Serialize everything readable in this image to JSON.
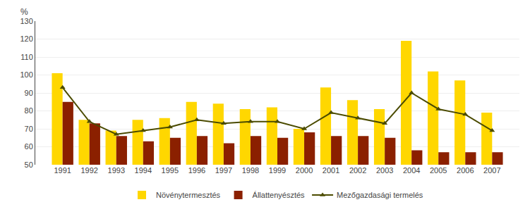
{
  "chart_data": {
    "type": "bar",
    "ylabel": "%",
    "categories": [
      1991,
      1992,
      1993,
      1994,
      1995,
      1996,
      1997,
      1998,
      1999,
      2000,
      2001,
      2002,
      2003,
      2004,
      2005,
      2006,
      2007
    ],
    "series": [
      {
        "name": "Növénytermesztés",
        "type": "bar",
        "color": "#FFD700",
        "values": [
          101,
          75,
          69,
          75,
          76,
          85,
          84,
          81,
          82,
          70,
          93,
          86,
          81,
          119,
          102,
          97,
          79
        ]
      },
      {
        "name": "Állattenyésztés",
        "type": "bar",
        "color": "#8B2000",
        "values": [
          85,
          73,
          66,
          63,
          65,
          66,
          62,
          66,
          65,
          68,
          66,
          66,
          65,
          58,
          57,
          57,
          57
        ]
      },
      {
        "name": "Mezőgazdasági termelés",
        "type": "line",
        "color": "#4B4B00",
        "marker": "triangle",
        "line_style": "solid",
        "values": [
          93,
          74,
          67,
          69,
          71,
          75,
          73,
          74,
          74,
          70,
          79,
          76,
          73,
          90,
          81,
          78,
          69
        ]
      }
    ],
    "ylim": [
      50,
      130
    ],
    "yticks": [
      50,
      60,
      70,
      80,
      90,
      100,
      110,
      120,
      130
    ],
    "grid": true,
    "legend": "bottom"
  }
}
